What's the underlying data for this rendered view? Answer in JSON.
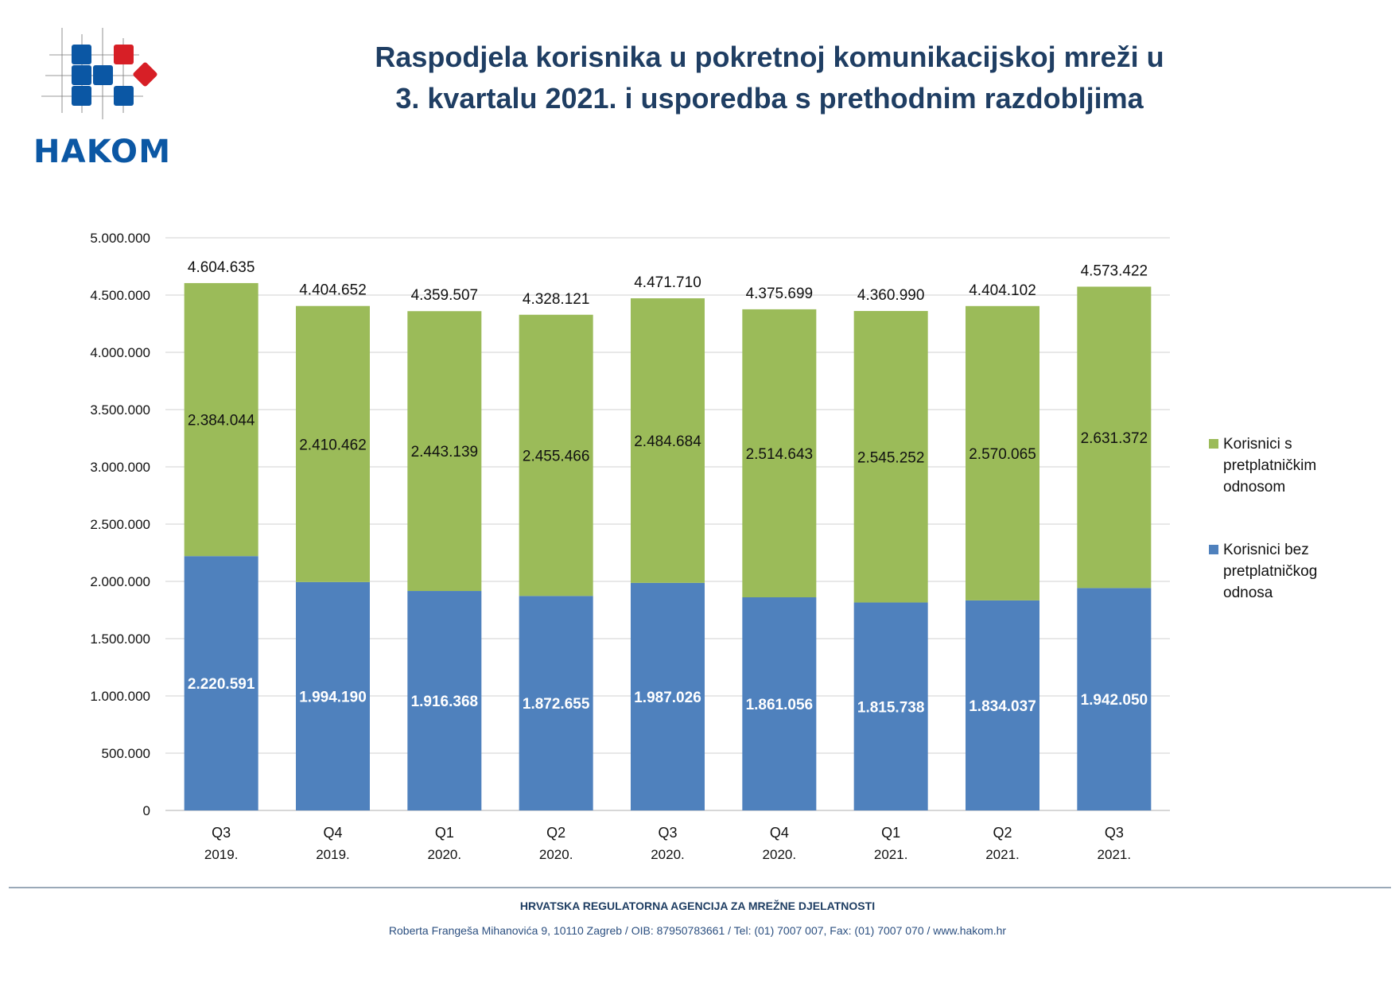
{
  "logo": {
    "text": "HAKOM",
    "colors": {
      "blue": "#0b57a4",
      "red": "#d71f26"
    }
  },
  "title": {
    "line1": "Raspodjela korisnika u pokretnoj komunikacijskoj mreži u",
    "line2": "3. kvartalu 2021. i usporedba s prethodnim razdobljima"
  },
  "chart_data": {
    "type": "bar",
    "stacked": true,
    "title": "Raspodjela korisnika u pokretnoj komunikacijskoj mreži u 3. kvartalu 2021. i usporedba s prethodnim razdobljima",
    "categories": [
      [
        "Q3",
        "2019."
      ],
      [
        "Q4",
        "2019."
      ],
      [
        "Q1",
        "2020."
      ],
      [
        "Q2",
        "2020."
      ],
      [
        "Q3",
        "2020."
      ],
      [
        "Q4",
        "2020."
      ],
      [
        "Q1",
        "2021."
      ],
      [
        "Q2",
        "2021."
      ],
      [
        "Q3",
        "2021."
      ]
    ],
    "series": [
      {
        "name": "Korisnici bez pretplatničkog odnosa",
        "color": "#4f81bd",
        "values": [
          2220591,
          1994190,
          1916368,
          1872655,
          1987026,
          1861056,
          1815738,
          1834037,
          1942050
        ],
        "labels": [
          "2.220.591",
          "1.994.190",
          "1.916.368",
          "1.872.655",
          "1.987.026",
          "1.861.056",
          "1.815.738",
          "1.834.037",
          "1.942.050"
        ]
      },
      {
        "name": "Korisnici s pretplatničkim odnosom",
        "color": "#9bbb59",
        "values": [
          2384044,
          2410462,
          2443139,
          2455466,
          2484684,
          2514643,
          2545252,
          2570065,
          2631372
        ],
        "labels": [
          "2.384.044",
          "2.410.462",
          "2.443.139",
          "2.455.466",
          "2.484.684",
          "2.514.643",
          "2.545.252",
          "2.570.065",
          "2.631.372"
        ]
      }
    ],
    "totals": [
      4604635,
      4404652,
      4359507,
      4328121,
      4471710,
      4375699,
      4360990,
      4404102,
      4573422
    ],
    "total_labels": [
      "4.604.635",
      "4.404.652",
      "4.359.507",
      "4.328.121",
      "4.471.710",
      "4.375.699",
      "4.360.990",
      "4.404.102",
      "4.573.422"
    ],
    "ylim": [
      0,
      5000000
    ],
    "yticks": [
      0,
      500000,
      1000000,
      1500000,
      2000000,
      2500000,
      3000000,
      3500000,
      4000000,
      4500000,
      5000000
    ],
    "ytick_labels": [
      "0",
      "500.000",
      "1.000.000",
      "1.500.000",
      "2.000.000",
      "2.500.000",
      "3.000.000",
      "3.500.000",
      "4.000.000",
      "4.500.000",
      "5.000.000"
    ],
    "grid": true,
    "legend_position": "right",
    "xlabel": "",
    "ylabel": ""
  },
  "legend": {
    "items": [
      {
        "lines": [
          "Korisnici s",
          "pretplatničkim",
          "odnosom"
        ],
        "color": "#9bbb59"
      },
      {
        "lines": [
          "Korisnici bez",
          "pretplatničkog",
          "odnosa"
        ],
        "color": "#4f81bd"
      }
    ]
  },
  "footer": {
    "org": "HRVATSKA REGULATORNA AGENCIJA ZA MREŽNE DJELATNOSTI",
    "address": "Roberta Frangeša Mihanovića 9, 10110 Zagreb / OIB: 87950783661 / Tel: (01) 7007 007, Fax: (01) 7007 070 / www.hakom.hr"
  }
}
